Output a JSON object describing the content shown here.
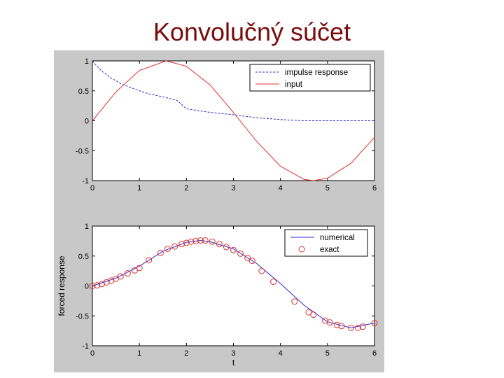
{
  "slide": {
    "title": "Konvolučný súčet"
  },
  "colors": {
    "title": "#7a0c0c",
    "figure_bg": "#c8c8c8",
    "axes_bg": "#ffffff",
    "red": "#e03030",
    "blue": "#2b2bcc"
  },
  "chart_data": [
    {
      "type": "line",
      "xlabel": "",
      "ylabel": "",
      "xlim": [
        0,
        6
      ],
      "ylim": [
        -1,
        1
      ],
      "xticks": [
        0,
        1,
        2,
        3,
        4,
        5,
        6
      ],
      "yticks": [
        -1,
        -0.5,
        0,
        0.5,
        1
      ],
      "xtick_labels": [
        "0",
        "1",
        "2",
        "3",
        "4",
        "5",
        "6"
      ],
      "ytick_labels": [
        "-1",
        "-0.5",
        "0",
        "0.5",
        "1"
      ],
      "legend_position": "top-right",
      "grid": false,
      "series": [
        {
          "name": "impulse response",
          "style": "dashed",
          "color": "#2b2bcc",
          "x": [
            0,
            0.1,
            0.2,
            0.3,
            0.4,
            0.5,
            0.6,
            0.8,
            1.0,
            1.2,
            1.5,
            1.8,
            2.0,
            2.5,
            3.0,
            3.5,
            4.0,
            4.5,
            5.0,
            5.5,
            6.0
          ],
          "y": [
            1.0,
            0.91,
            0.83,
            0.77,
            0.71,
            0.67,
            0.62,
            0.56,
            0.5,
            0.45,
            0.4,
            0.34,
            0.2,
            0.14,
            0.1,
            0.05,
            0.02,
            0.0,
            0.0,
            0.0,
            0.0
          ]
        },
        {
          "name": "input",
          "style": "solid",
          "color": "#e03030",
          "x": [
            0,
            0.5,
            1.0,
            1.57,
            2.0,
            2.5,
            3.0,
            3.14,
            3.5,
            4.0,
            4.5,
            4.71,
            5.0,
            5.5,
            6.0
          ],
          "y": [
            0.0,
            0.48,
            0.84,
            1.0,
            0.91,
            0.6,
            0.14,
            0.0,
            -0.35,
            -0.76,
            -0.98,
            -1.0,
            -0.96,
            -0.71,
            -0.28
          ]
        }
      ]
    },
    {
      "type": "line",
      "xlabel": "t",
      "ylabel": "forced response",
      "xlim": [
        0,
        6
      ],
      "ylim": [
        -1,
        1
      ],
      "xticks": [
        0,
        1,
        2,
        3,
        4,
        5,
        6
      ],
      "yticks": [
        -1,
        -0.5,
        0,
        0.5,
        1
      ],
      "xtick_labels": [
        "0",
        "1",
        "2",
        "3",
        "4",
        "5",
        "6"
      ],
      "ytick_labels": [
        "-1",
        "-0.5",
        "0",
        "0.5",
        "1"
      ],
      "legend_position": "top-right",
      "grid": false,
      "series": [
        {
          "name": "numerical",
          "style": "solid",
          "color": "#2b2bcc",
          "x": [
            0,
            0.5,
            1.0,
            1.5,
            2.0,
            2.3,
            2.5,
            3.0,
            3.5,
            4.0,
            4.5,
            5.0,
            5.5,
            6.0
          ],
          "y": [
            0.0,
            0.13,
            0.33,
            0.58,
            0.73,
            0.76,
            0.74,
            0.62,
            0.37,
            0.04,
            -0.32,
            -0.6,
            -0.7,
            -0.62
          ]
        },
        {
          "name": "exact",
          "style": "markers",
          "marker": "circle",
          "color": "#e03030",
          "x": [
            0,
            0.1,
            0.2,
            0.3,
            0.4,
            0.5,
            0.6,
            0.75,
            0.9,
            1.0,
            1.2,
            1.45,
            1.6,
            1.75,
            1.9,
            2.0,
            2.1,
            2.2,
            2.3,
            2.4,
            2.55,
            2.7,
            2.85,
            3.0,
            3.15,
            3.3,
            3.4,
            3.6,
            3.85,
            4.3,
            4.6,
            4.7,
            4.95,
            5.05,
            5.2,
            5.3,
            5.5,
            5.65,
            5.75,
            6.0
          ],
          "y": [
            0.0,
            0.01,
            0.03,
            0.06,
            0.09,
            0.12,
            0.16,
            0.21,
            0.26,
            0.3,
            0.43,
            0.55,
            0.62,
            0.66,
            0.7,
            0.72,
            0.74,
            0.75,
            0.76,
            0.76,
            0.74,
            0.7,
            0.65,
            0.6,
            0.54,
            0.47,
            0.42,
            0.25,
            0.07,
            -0.26,
            -0.44,
            -0.48,
            -0.58,
            -0.61,
            -0.65,
            -0.67,
            -0.7,
            -0.7,
            -0.68,
            -0.62
          ]
        }
      ]
    }
  ]
}
